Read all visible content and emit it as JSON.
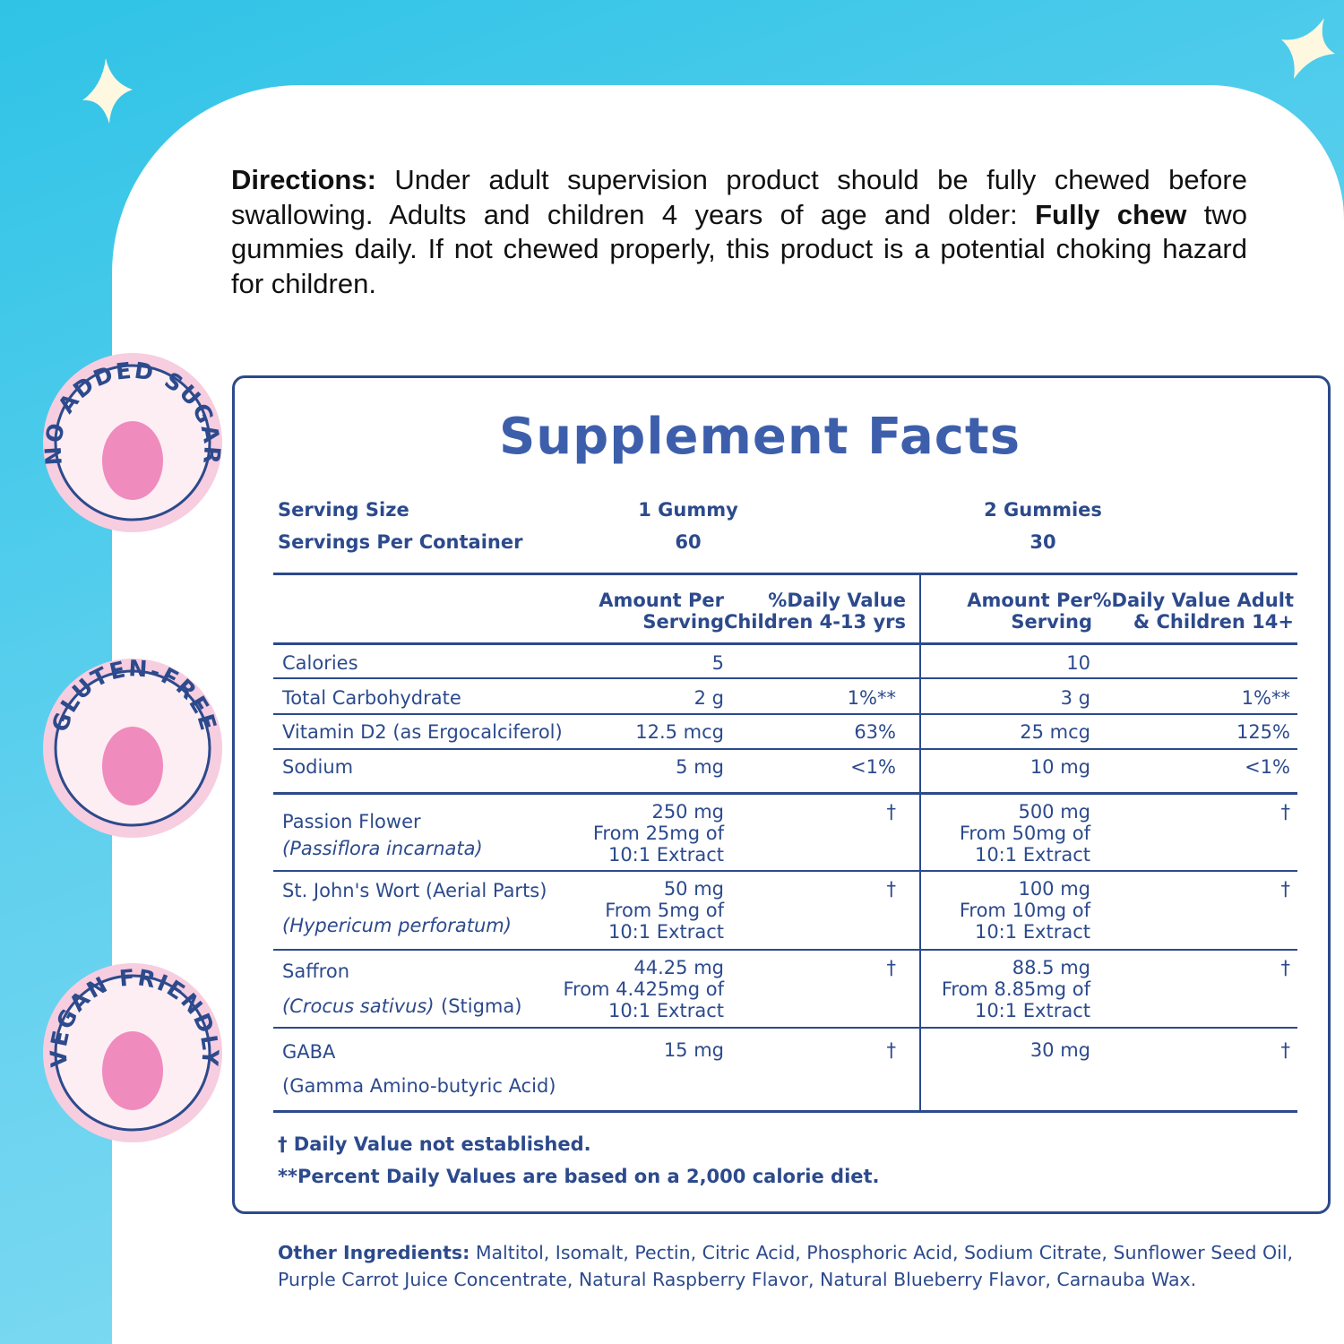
{
  "directions": {
    "label": "Directions:",
    "text1": "Under adult supervision product should be fully chewed before swallowing. Adults and children 4 years of age and older:",
    "bold": "Fully chew",
    "text2": "two gummies daily. If not chewed properly, this product is a potential choking hazard for children."
  },
  "badges": [
    "NO ADDED SUGAR",
    "GLUTEN-FREE",
    "VEGAN FRIENDLY"
  ],
  "facts": {
    "title": "Supplement Facts",
    "serving": [
      {
        "label": "Serving Size",
        "col1": "1 Gummy",
        "col2": "2 Gummies"
      },
      {
        "label": "Servings Per Container",
        "col1": "60",
        "col2": "30"
      }
    ],
    "headers": [
      [
        "Amount Per",
        "Serving"
      ],
      [
        "%Daily Value",
        "Children 4-13 yrs"
      ],
      [
        "Amount Per",
        "Serving"
      ],
      [
        "%Daily Value Adult",
        "& Children 14+"
      ]
    ],
    "rows": [
      {
        "name": "Calories",
        "amount1": "5",
        "amount2": "10"
      },
      {
        "name": "Total Carbohydrate",
        "amount1": "2 g",
        "dv1": "1%**",
        "amount2": "3 g",
        "dv2": "1%**"
      },
      {
        "name": "Vitamin D2 (as Ergocalciferol)",
        "amount1": "12.5 mcg",
        "dv1": "63%",
        "amount2": "25 mcg",
        "dv2": "125%"
      },
      {
        "name": "Sodium",
        "amount1": "5 mg",
        "dv1": "<1%",
        "amount2": "10 mg",
        "dv2": "<1%"
      },
      {
        "name": "Passion Flower",
        "sub": "(Passiflora incarnata)",
        "amount1": [
          "250 mg",
          "From 25mg of",
          "10:1 Extract"
        ],
        "dv1": "†",
        "amount2": [
          "500 mg",
          "From 50mg of",
          "10:1 Extract"
        ],
        "dv2": "†"
      },
      {
        "name": "St. John's Wort (Aerial Parts)",
        "sub": "(Hypericum perforatum)",
        "amount1": [
          "50 mg",
          "From 5mg of",
          "10:1 Extract"
        ],
        "dv1": "†",
        "amount2": [
          "100 mg",
          "From 10mg of",
          "10:1 Extract"
        ],
        "dv2": "†"
      },
      {
        "name": "Saffron",
        "sub": "(Crocus sativus)",
        "sub_note": "(Stigma)",
        "amount1": [
          "44.25 mg",
          "From 4.425mg of",
          "10:1 Extract"
        ],
        "dv1": "†",
        "amount2": [
          "88.5 mg",
          "From 8.85mg of",
          "10:1 Extract"
        ],
        "dv2": "†"
      },
      {
        "name": "GABA",
        "sub": "(Gamma Amino-butyric Acid)",
        "amount1": "15 mg",
        "dv1": "†",
        "amount2": "30 mg",
        "dv2": "†"
      }
    ],
    "footnotes": [
      "† Daily Value not established.",
      "**Percent Daily Values are based on a 2,000 calorie diet."
    ]
  },
  "other_ingredients": {
    "label": "Other Ingredients:",
    "text": "Maltitol, Isomalt, Pectin, Citric Acid, Phosphoric Acid, Sodium Citrate, Sunflower Seed Oil, Purple Carrot Juice Concentrate, Natural Raspberry Flavor, Natural Blueberry Flavor, Carnauba Wax."
  }
}
